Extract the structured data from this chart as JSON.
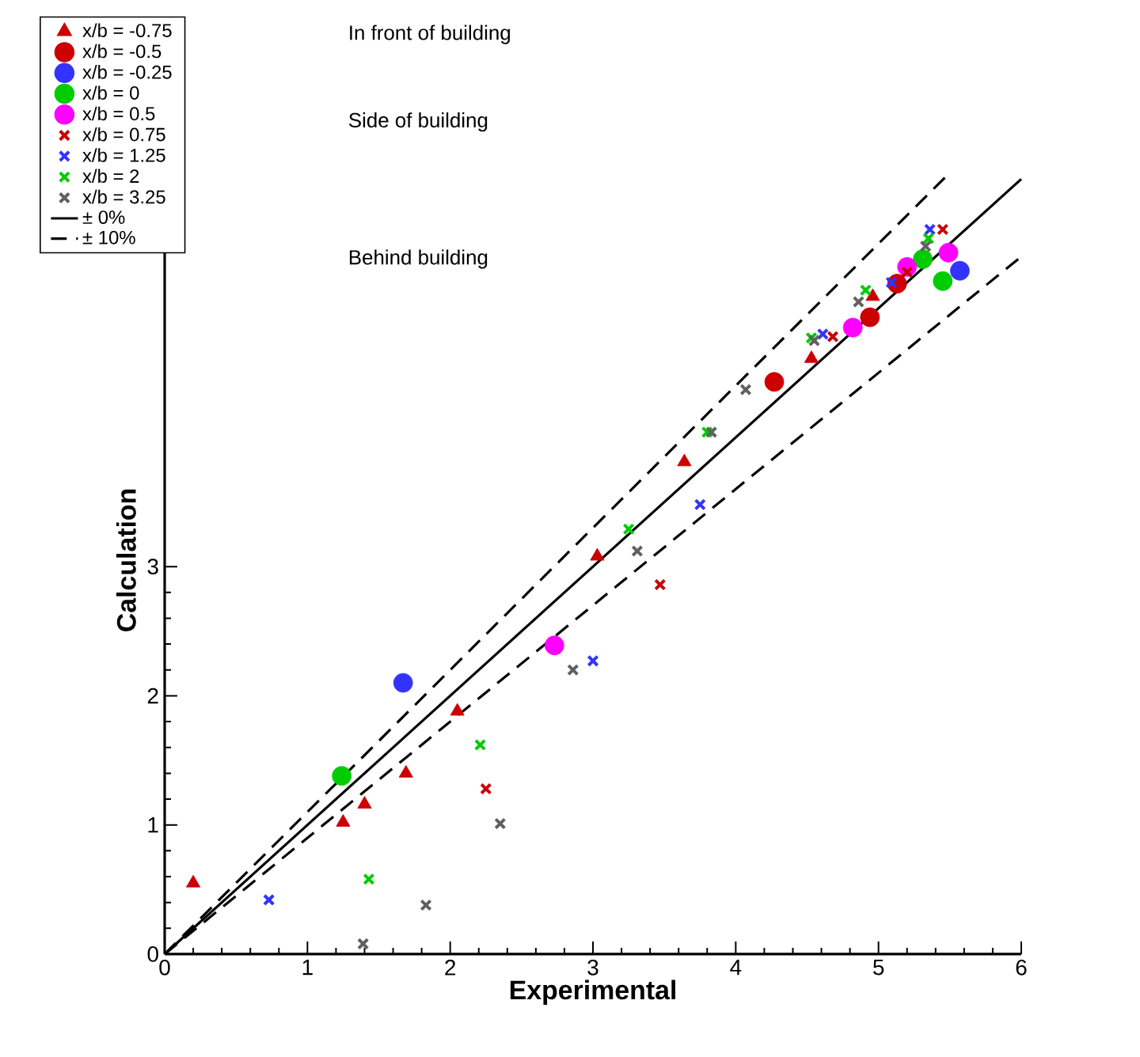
{
  "chart_data": {
    "type": "scatter",
    "xlabel": "Experimental",
    "ylabel": "Calculation",
    "xlim": [
      0,
      6
    ],
    "ylim": [
      0,
      6.1
    ],
    "xticks": [
      0,
      1,
      2,
      3,
      4,
      5,
      6
    ],
    "yticks": [
      0,
      1,
      2,
      3
    ],
    "legend": "top left",
    "grid": false,
    "annotations": [
      "In front of building",
      "Side of building",
      "Behind building"
    ],
    "series": [
      {
        "name": "x/b = -0.75",
        "color": "#cc0000",
        "marker": "triangle",
        "x": [
          0.2,
          1.25,
          1.4,
          1.69,
          2.05,
          3.03,
          3.64,
          4.53,
          4.96
        ],
        "values": [
          0.55,
          1.02,
          1.16,
          1.4,
          1.88,
          3.08,
          3.81,
          4.61,
          5.09
        ]
      },
      {
        "name": "x/b = -0.5",
        "color": "#cc0000",
        "marker": "circle",
        "x": [
          4.27,
          4.94,
          5.13
        ],
        "values": [
          4.43,
          4.93,
          5.19
        ]
      },
      {
        "name": "x/b = -0.25",
        "color": "#3333ff",
        "marker": "circle",
        "x": [
          1.67,
          5.57
        ],
        "values": [
          2.1,
          5.29
        ]
      },
      {
        "name": "x/b = 0",
        "color": "#00cc00",
        "marker": "circle",
        "x": [
          1.24,
          5.45,
          5.31
        ],
        "values": [
          1.38,
          5.21,
          5.38
        ]
      },
      {
        "name": "x/b = 0.5",
        "color": "#ff00ff",
        "marker": "circle",
        "x": [
          2.73,
          4.82,
          5.2,
          5.49
        ],
        "values": [
          2.39,
          4.85,
          5.32,
          5.43
        ]
      },
      {
        "name": "x/b = 0.75",
        "color": "#cc0000",
        "marker": "cross",
        "x": [
          2.25,
          3.47,
          4.68,
          5.2,
          5.45
        ],
        "values": [
          1.28,
          2.86,
          4.78,
          5.28,
          5.61
        ]
      },
      {
        "name": "x/b = 1.25",
        "color": "#3333ff",
        "marker": "cross",
        "x": [
          0.73,
          3.0,
          3.75,
          4.61,
          5.09,
          5.36
        ],
        "values": [
          0.42,
          2.27,
          3.48,
          4.8,
          5.2,
          5.61
        ]
      },
      {
        "name": "x/b = 2",
        "color": "#00cc00",
        "marker": "cross",
        "x": [
          1.43,
          2.21,
          3.25,
          3.8,
          4.53,
          4.91,
          5.35
        ],
        "values": [
          0.58,
          1.62,
          3.29,
          4.04,
          4.77,
          5.14,
          5.54
        ]
      },
      {
        "name": "x/b = 3.25",
        "color": "#606060",
        "marker": "cross",
        "x": [
          1.39,
          1.83,
          2.35,
          2.86,
          3.31,
          3.83,
          4.07,
          4.55,
          4.86,
          5.33
        ],
        "values": [
          0.08,
          0.38,
          1.01,
          2.2,
          3.12,
          4.04,
          4.37,
          4.75,
          5.05,
          5.48
        ]
      },
      {
        "name": "± 0%",
        "type": "line",
        "color": "#000000",
        "marker": "none",
        "line_style": "solid",
        "x": [
          0,
          6
        ],
        "values": [
          0,
          6
        ]
      },
      {
        "name": "± 10%",
        "type": "line",
        "color": "#000000",
        "marker": "none",
        "line_style": "dashed",
        "x": [
          0,
          5.5
        ],
        "values": [
          0,
          6.05
        ]
      },
      {
        "type": "line",
        "color": "#000000",
        "marker": "none",
        "line_style": "dashed",
        "x": [
          0,
          6
        ],
        "values": [
          0,
          5.4
        ]
      }
    ]
  }
}
